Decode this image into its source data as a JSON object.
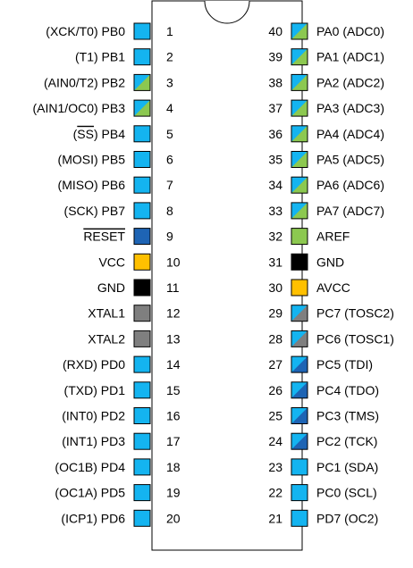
{
  "colors": {
    "cyan": "#14b4f0",
    "green": "#8cc850",
    "blue": "#1e64b4",
    "black": "#000000",
    "gray": "#7f7f7f",
    "yellow": "#ffc000",
    "outline": "#000000"
  },
  "chip": {
    "notch": "semicircle-notch"
  },
  "pins": [
    {
      "num": "1",
      "label": "(XCK/T0) PB0",
      "color": "cyan"
    },
    {
      "num": "2",
      "label": "(T1) PB1",
      "color": "cyan"
    },
    {
      "num": "3",
      "label": "(AIN0/T2) PB2",
      "color": "split-cyan-green"
    },
    {
      "num": "4",
      "label": "(AIN1/OC0) PB3",
      "color": "split-cyan-green"
    },
    {
      "num": "5",
      "label": "(SS) PB4",
      "overline": "SS",
      "label_rest": " PB4",
      "label_prefix": "(",
      "label_suffix": ")",
      "color": "cyan"
    },
    {
      "num": "6",
      "label": "(MOSI) PB5",
      "color": "cyan"
    },
    {
      "num": "7",
      "label": "(MISO) PB6",
      "color": "cyan"
    },
    {
      "num": "8",
      "label": "(SCK) PB7",
      "color": "cyan"
    },
    {
      "num": "9",
      "label": "RESET",
      "overline_full": true,
      "color": "blue"
    },
    {
      "num": "10",
      "label": "VCC",
      "color": "yellow"
    },
    {
      "num": "11",
      "label": "GND",
      "color": "black"
    },
    {
      "num": "12",
      "label": "XTAL1",
      "color": "gray"
    },
    {
      "num": "13",
      "label": "XTAL2",
      "color": "gray"
    },
    {
      "num": "14",
      "label": "(RXD) PD0",
      "color": "cyan"
    },
    {
      "num": "15",
      "label": "(TXD) PD1",
      "color": "cyan"
    },
    {
      "num": "16",
      "label": "(INT0) PD2",
      "color": "cyan"
    },
    {
      "num": "17",
      "label": "(INT1) PD3",
      "color": "cyan"
    },
    {
      "num": "18",
      "label": "(OC1B) PD4",
      "color": "cyan"
    },
    {
      "num": "19",
      "label": "(OC1A) PD5",
      "color": "cyan"
    },
    {
      "num": "20",
      "label": "(ICP1) PD6",
      "color": "cyan"
    },
    {
      "num": "21",
      "label": "PD7 (OC2)",
      "color": "cyan"
    },
    {
      "num": "22",
      "label": "PC0 (SCL)",
      "color": "cyan"
    },
    {
      "num": "23",
      "label": "PC1 (SDA)",
      "color": "cyan"
    },
    {
      "num": "24",
      "label": "PC2 (TCK)",
      "color": "split-cyan-blue"
    },
    {
      "num": "25",
      "label": "PC3 (TMS)",
      "color": "split-cyan-blue"
    },
    {
      "num": "26",
      "label": "PC4 (TDO)",
      "color": "split-cyan-blue"
    },
    {
      "num": "27",
      "label": "PC5 (TDI)",
      "color": "split-cyan-blue"
    },
    {
      "num": "28",
      "label": "PC6 (TOSC1)",
      "color": "split-cyan-gray"
    },
    {
      "num": "29",
      "label": "PC7 (TOSC2)",
      "color": "split-cyan-gray"
    },
    {
      "num": "30",
      "label": "AVCC",
      "color": "yellow"
    },
    {
      "num": "31",
      "label": "GND",
      "color": "black"
    },
    {
      "num": "32",
      "label": "AREF",
      "color": "green"
    },
    {
      "num": "33",
      "label": "PA7 (ADC7)",
      "color": "split-cyan-green"
    },
    {
      "num": "34",
      "label": "PA6 (ADC6)",
      "color": "split-cyan-green"
    },
    {
      "num": "35",
      "label": "PA5 (ADC5)",
      "color": "split-cyan-green"
    },
    {
      "num": "36",
      "label": "PA4 (ADC4)",
      "color": "split-cyan-green"
    },
    {
      "num": "37",
      "label": "PA3 (ADC3)",
      "color": "split-cyan-green"
    },
    {
      "num": "38",
      "label": "PA2 (ADC2)",
      "color": "split-cyan-green"
    },
    {
      "num": "39",
      "label": "PA1 (ADC1)",
      "color": "split-cyan-green"
    },
    {
      "num": "40",
      "label": "PA0 (ADC0)",
      "color": "split-cyan-green"
    }
  ]
}
